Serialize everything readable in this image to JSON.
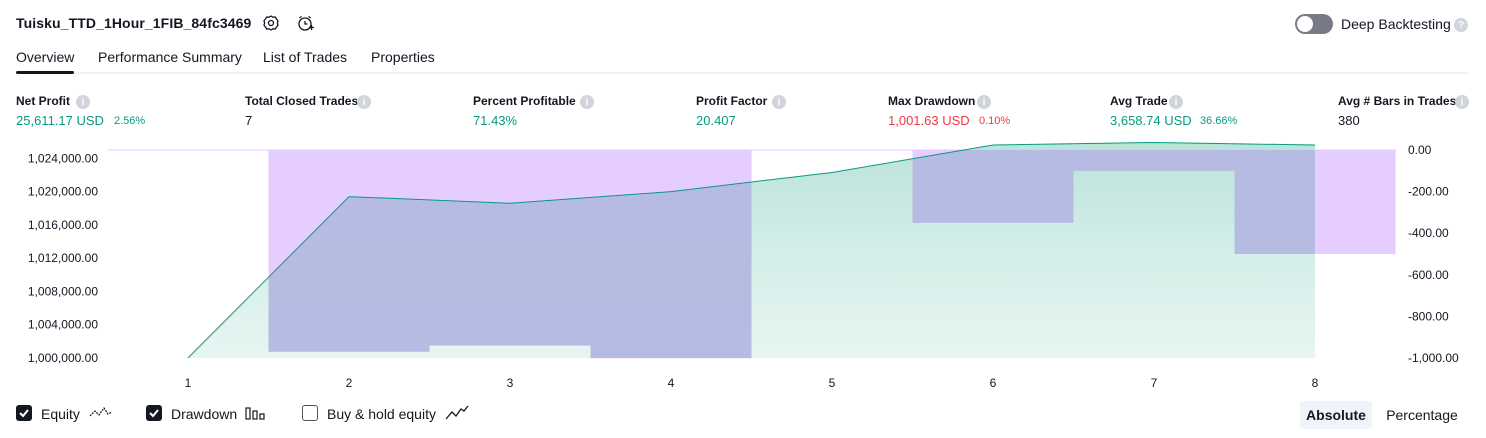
{
  "header": {
    "strategy_name": "Tuisku_TTD_1Hour_1FIB_84fc3469",
    "deep_backtesting_label": "Deep Backtesting",
    "deep_backtesting_enabled": false
  },
  "tabs": [
    {
      "label": "Overview",
      "active": true
    },
    {
      "label": "Performance Summary",
      "active": false
    },
    {
      "label": "List of Trades",
      "active": false
    },
    {
      "label": "Properties",
      "active": false
    }
  ],
  "metrics": [
    {
      "label": "Net Profit",
      "value": "25,611.17 USD",
      "sub": "2.56%",
      "color": "#089981"
    },
    {
      "label": "Total Closed Trades",
      "value": "7",
      "sub": "",
      "color": "#131722"
    },
    {
      "label": "Percent Profitable",
      "value": "71.43%",
      "sub": "",
      "color": "#089981"
    },
    {
      "label": "Profit Factor",
      "value": "20.407",
      "sub": "",
      "color": "#089981"
    },
    {
      "label": "Max Drawdown",
      "value": "1,001.63 USD",
      "sub": "0.10%",
      "color": "#f23645"
    },
    {
      "label": "Avg Trade",
      "value": "3,658.74 USD",
      "sub": "36.66%",
      "color": "#089981"
    },
    {
      "label": "Avg # Bars in Trades",
      "value": "380",
      "sub": "",
      "color": "#131722"
    }
  ],
  "chart_data": {
    "type": "line",
    "x": [
      1,
      2,
      3,
      4,
      5,
      6,
      7,
      8
    ],
    "left_axis_ticks": [
      "1,024,000.00",
      "1,020,000.00",
      "1,016,000.00",
      "1,012,000.00",
      "1,008,000.00",
      "1,004,000.00",
      "1,000,000.00"
    ],
    "right_axis_ticks": [
      "0.00",
      "-200.00",
      "-400.00",
      "-600.00",
      "-800.00",
      "-1,000.00"
    ],
    "left_ylim": [
      1000000,
      1025000
    ],
    "right_ylim": [
      -1000,
      0
    ],
    "equity": [
      1000000,
      1019400,
      1018600,
      1020000,
      1022300,
      1025600,
      1025900,
      1025600
    ],
    "drawdown": [
      0,
      -970,
      -940,
      -1001.63,
      0,
      -350,
      -100,
      -500
    ],
    "colors": {
      "equity": "#089981",
      "drawdown": "#e1c6ff",
      "drawdown_overlap": "#b4b8e2"
    }
  },
  "legend": {
    "equity_label": "Equity",
    "drawdown_label": "Drawdown",
    "buyhold_label": "Buy & hold equity",
    "equity_checked": true,
    "drawdown_checked": true,
    "buyhold_checked": false
  },
  "view_toggle": {
    "absolute_label": "Absolute",
    "percentage_label": "Percentage",
    "selected": "Absolute"
  }
}
